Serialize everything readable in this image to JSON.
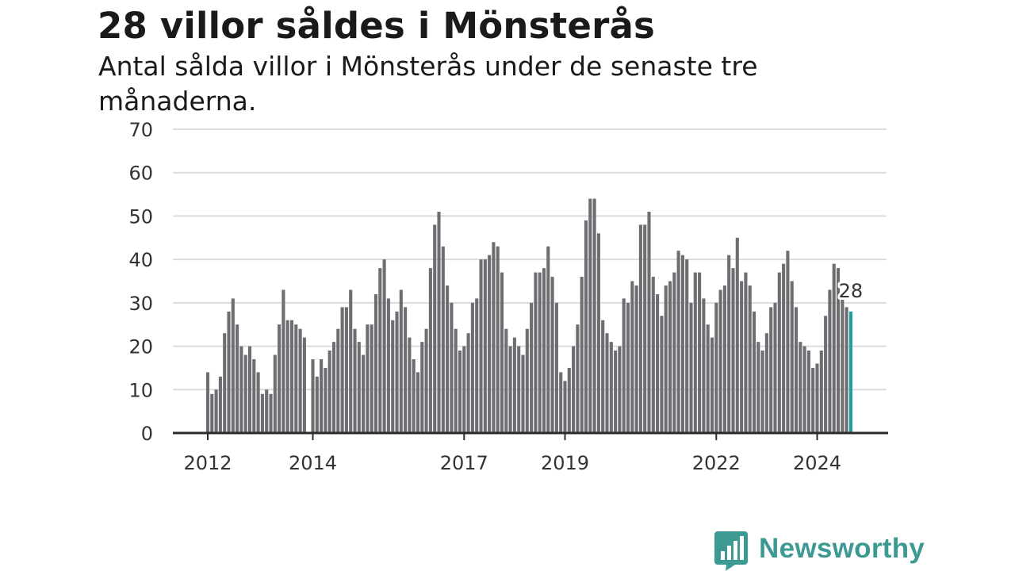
{
  "header": {
    "title": "28 villor såldes i Mönsterås",
    "subtitle": "Antal sålda villor i Mönsterås under de senaste tre månaderna."
  },
  "brand": {
    "name": "Newsworthy",
    "color": "#3d9a93",
    "icon": "newsworthy-chart-bubble-icon"
  },
  "chart_data": {
    "type": "bar",
    "title": "28 villor såldes i Mönsterås",
    "subtitle": "Antal sålda villor i Mönsterås under de senaste tre månaderna.",
    "ylim": [
      0,
      70
    ],
    "yticks": [
      "0",
      "10",
      "20",
      "30",
      "40",
      "50",
      "60",
      "70"
    ],
    "xticks": [
      {
        "label": "2012",
        "index": 0
      },
      {
        "label": "2014",
        "index": 25
      },
      {
        "label": "2017",
        "index": 61
      },
      {
        "label": "2019",
        "index": 85
      },
      {
        "label": "2022",
        "index": 121
      },
      {
        "label": "2024",
        "index": 145
      }
    ],
    "grid": true,
    "bar_color": "#6e6d72",
    "highlight_color": "#1b9e9e",
    "highlight_label": "28",
    "values": [
      14,
      9,
      10,
      13,
      23,
      28,
      31,
      25,
      20,
      18,
      20,
      17,
      14,
      9,
      10,
      9,
      18,
      25,
      33,
      26,
      26,
      25,
      24,
      22,
      null,
      17,
      13,
      17,
      15,
      19,
      21,
      24,
      29,
      29,
      33,
      24,
      21,
      18,
      25,
      25,
      32,
      38,
      40,
      31,
      26,
      28,
      33,
      29,
      22,
      17,
      14,
      21,
      24,
      38,
      48,
      51,
      43,
      34,
      30,
      24,
      19,
      20,
      23,
      30,
      31,
      40,
      40,
      41,
      44,
      43,
      37,
      24,
      20,
      22,
      20,
      18,
      24,
      30,
      37,
      37,
      38,
      43,
      36,
      30,
      14,
      12,
      15,
      20,
      25,
      36,
      49,
      54,
      54,
      46,
      26,
      23,
      21,
      19,
      20,
      31,
      30,
      35,
      34,
      48,
      48,
      51,
      36,
      32,
      27,
      34,
      35,
      37,
      42,
      41,
      40,
      30,
      37,
      37,
      31,
      25,
      22,
      30,
      33,
      34,
      41,
      38,
      45,
      35,
      37,
      34,
      28,
      21,
      19,
      23,
      29,
      30,
      37,
      39,
      42,
      35,
      29,
      21,
      20,
      19,
      15,
      16,
      19,
      27,
      33,
      39,
      38,
      31,
      29,
      28
    ]
  }
}
